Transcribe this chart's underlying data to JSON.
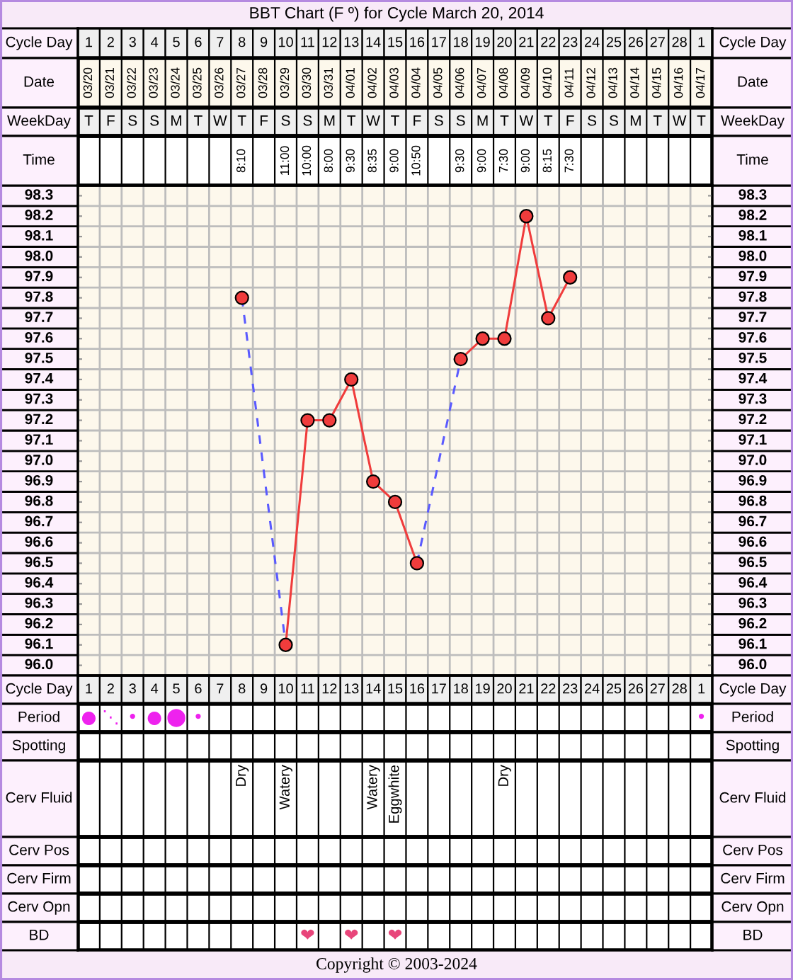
{
  "chart_data": [
    {
      "type": "heatmap",
      "title": "BBT Chart (F º) for Cycle March 20, 2014",
      "categories": [
        "1",
        "2",
        "3",
        "4",
        "5",
        "6",
        "7",
        "8",
        "9",
        "10",
        "11",
        "12",
        "13",
        "14",
        "15",
        "16",
        "17",
        "18",
        "19",
        "20",
        "21",
        "22",
        "23",
        "24",
        "25",
        "26",
        "27",
        "28",
        "1"
      ],
      "xlabel": "Cycle Day",
      "y_categories": [
        "Date",
        "WeekDay",
        "Time"
      ],
      "y2_categories": [
        "Date",
        "WeekDay",
        "Time"
      ],
      "cells": [
        [
          null,
          null,
          null,
          null,
          null,
          null,
          null,
          null,
          null,
          null,
          null,
          null,
          null,
          null,
          null,
          null,
          null,
          null,
          null,
          null,
          null,
          null,
          null,
          null,
          null,
          null,
          null,
          null,
          null
        ],
        [
          null,
          null,
          null,
          null,
          null,
          null,
          null,
          null,
          null,
          null,
          null,
          null,
          null,
          null,
          null,
          null,
          null,
          null,
          null,
          null,
          null,
          null,
          null,
          null,
          null,
          null,
          null,
          null,
          null
        ],
        [
          null,
          null,
          null,
          null,
          null,
          null,
          null,
          null,
          null,
          null,
          null,
          null,
          null,
          null,
          null,
          null,
          null,
          null,
          null,
          null,
          null,
          null,
          null,
          null,
          null,
          null,
          null,
          null,
          null
        ]
      ],
      "cell_labels": [
        [
          "03/20",
          "03/21",
          "03/22",
          "03/23",
          "03/24",
          "03/25",
          "03/26",
          "03/27",
          "03/28",
          "03/29",
          "03/30",
          "03/31",
          "04/01",
          "04/02",
          "04/03",
          "04/04",
          "04/05",
          "04/06",
          "04/07",
          "04/08",
          "04/09",
          "04/10",
          "04/11",
          "04/12",
          "04/13",
          "04/14",
          "04/15",
          "04/16",
          "04/17"
        ],
        [
          "T",
          "F",
          "S",
          "S",
          "M",
          "T",
          "W",
          "T",
          "F",
          "S",
          "S",
          "M",
          "T",
          "W",
          "T",
          "F",
          "S",
          "S",
          "M",
          "T",
          "W",
          "T",
          "F",
          "S",
          "S",
          "M",
          "T",
          "W",
          "T"
        ],
        [
          null,
          null,
          null,
          null,
          null,
          null,
          null,
          "8:10",
          null,
          "11:00",
          "10:00",
          "8:00",
          "9:30",
          "8:35",
          "9:00",
          "10:50",
          null,
          "9:30",
          "9:00",
          "7:30",
          "9:00",
          "8:15",
          "7:30",
          null,
          null,
          null,
          null,
          null,
          null
        ]
      ]
    },
    {
      "type": "line",
      "categories": [
        "1",
        "2",
        "3",
        "4",
        "5",
        "6",
        "7",
        "8",
        "9",
        "10",
        "11",
        "12",
        "13",
        "14",
        "15",
        "16",
        "17",
        "18",
        "19",
        "20",
        "21",
        "22",
        "23",
        "24",
        "25",
        "26",
        "27",
        "28",
        "1"
      ],
      "xlabel": "Cycle Day",
      "ylim": [
        95.95,
        98.35
      ],
      "yticks": [
        {
          "value": 96,
          "label": "96.0"
        },
        96.1,
        96.2,
        96.3,
        96.4,
        96.5,
        96.6,
        96.7,
        96.8,
        96.9,
        {
          "value": 97,
          "label": "97.0"
        },
        97.1,
        97.2,
        97.3,
        97.4,
        97.5,
        97.6,
        97.7,
        97.8,
        97.9,
        {
          "value": 98,
          "label": "98.0"
        },
        98.1,
        98.2,
        98.3
      ],
      "y2lim": [
        95.95,
        98.35
      ],
      "y2ticks": [
        {
          "value": 96,
          "label": "96.0"
        },
        96.1,
        96.2,
        96.3,
        96.4,
        96.5,
        96.6,
        96.7,
        96.8,
        96.9,
        {
          "value": 97,
          "label": "97.0"
        },
        97.1,
        97.2,
        97.3,
        97.4,
        97.5,
        97.6,
        97.7,
        97.8,
        97.9,
        {
          "value": 98,
          "label": "98.0"
        },
        98.1,
        98.2,
        98.3
      ],
      "grid": true,
      "marker": "circle",
      "series": [
        {
          "color": "#f03c3c",
          "values": [
            null,
            null,
            null,
            null,
            null,
            null,
            null,
            97.8,
            null,
            96.1,
            97.2,
            97.2,
            97.4,
            96.9,
            96.8,
            96.5,
            null,
            97.5,
            97.6,
            97.6,
            98.2,
            97.7,
            97.9,
            null,
            null,
            null,
            null,
            null,
            null
          ]
        },
        {
          "type": "line",
          "x": [
            "8",
            "10"
          ],
          "values": [
            97.8,
            96.1
          ],
          "color": "#5a5aff",
          "line_style": "dashed",
          "marker": "none"
        },
        {
          "type": "line",
          "x": [
            "16",
            "18"
          ],
          "values": [
            96.5,
            97.5
          ],
          "color": "#5a5aff",
          "line_style": "dashed",
          "marker": "none"
        }
      ]
    },
    {
      "type": "heatmap",
      "categories": [
        null,
        null,
        null,
        null,
        null,
        null,
        null,
        null,
        null,
        null,
        null,
        null,
        null,
        null,
        null,
        null,
        null,
        null,
        null,
        null,
        null,
        null,
        null,
        null,
        null,
        null,
        null,
        null,
        null
      ],
      "y_categories": [
        "Period",
        "Spotting",
        "Cerv Fluid",
        "Cerv Pos",
        "Cerv Firm",
        "Cerv Opn",
        "BD"
      ],
      "y2_categories": [
        "Period",
        "Spotting",
        "Cerv Fluid",
        "Cerv Pos",
        "Cerv Firm",
        "Cerv Opn",
        "BD"
      ],
      "cells": [
        [
          null,
          null,
          null,
          null,
          null,
          null,
          null,
          null,
          null,
          null,
          null,
          null,
          null,
          null,
          null,
          null,
          null,
          null,
          null,
          null,
          null,
          null,
          null,
          null,
          null,
          null,
          null,
          null,
          null
        ],
        [
          null,
          null,
          null,
          null,
          null,
          null,
          null,
          null,
          null,
          null,
          null,
          null,
          null,
          null,
          null,
          null,
          null,
          null,
          null,
          null,
          null,
          null,
          null,
          null,
          null,
          null,
          null,
          null,
          null
        ],
        [
          null,
          null,
          null,
          null,
          null,
          null,
          null,
          null,
          null,
          null,
          null,
          null,
          null,
          null,
          null,
          null,
          null,
          null,
          null,
          null,
          null,
          null,
          null,
          null,
          null,
          null,
          null,
          null,
          null
        ],
        [
          null,
          null,
          null,
          null,
          null,
          null,
          null,
          null,
          null,
          null,
          null,
          null,
          null,
          null,
          null,
          null,
          null,
          null,
          null,
          null,
          null,
          null,
          null,
          null,
          null,
          null,
          null,
          null,
          null
        ],
        [
          null,
          null,
          null,
          null,
          null,
          null,
          null,
          null,
          null,
          null,
          null,
          null,
          null,
          null,
          null,
          null,
          null,
          null,
          null,
          null,
          null,
          null,
          null,
          null,
          null,
          null,
          null,
          null,
          null
        ],
        [
          null,
          null,
          null,
          null,
          null,
          null,
          null,
          null,
          null,
          null,
          null,
          null,
          null,
          null,
          null,
          null,
          null,
          null,
          null,
          null,
          null,
          null,
          null,
          null,
          null,
          null,
          null,
          null,
          null
        ],
        [
          null,
          null,
          null,
          null,
          null,
          null,
          null,
          null,
          null,
          null,
          null,
          null,
          null,
          null,
          null,
          null,
          null,
          null,
          null,
          null,
          null,
          null,
          null,
          null,
          null,
          null,
          null,
          null,
          null
        ]
      ],
      "cell_labels": [
        [
          "●",
          "⋱",
          "•",
          "●",
          "⬤",
          "•",
          null,
          null,
          null,
          null,
          null,
          null,
          null,
          null,
          null,
          null,
          null,
          null,
          null,
          null,
          null,
          null,
          null,
          null,
          null,
          null,
          null,
          null,
          "•"
        ],
        [
          null,
          null,
          null,
          null,
          null,
          null,
          null,
          null,
          null,
          null,
          null,
          null,
          null,
          null,
          null,
          null,
          null,
          null,
          null,
          null,
          null,
          null,
          null,
          null,
          null,
          null,
          null,
          null,
          null
        ],
        [
          null,
          null,
          null,
          null,
          null,
          null,
          null,
          "Dry",
          null,
          "Watery",
          null,
          null,
          null,
          "Watery",
          "Eggwhite",
          null,
          null,
          null,
          null,
          "Dry",
          null,
          null,
          null,
          null,
          null,
          null,
          null,
          null,
          null
        ],
        [
          null,
          null,
          null,
          null,
          null,
          null,
          null,
          null,
          null,
          null,
          null,
          null,
          null,
          null,
          null,
          null,
          null,
          null,
          null,
          null,
          null,
          null,
          null,
          null,
          null,
          null,
          null,
          null,
          null
        ],
        [
          null,
          null,
          null,
          null,
          null,
          null,
          null,
          null,
          null,
          null,
          null,
          null,
          null,
          null,
          null,
          null,
          null,
          null,
          null,
          null,
          null,
          null,
          null,
          null,
          null,
          null,
          null,
          null,
          null
        ],
        [
          null,
          null,
          null,
          null,
          null,
          null,
          null,
          null,
          null,
          null,
          null,
          null,
          null,
          null,
          null,
          null,
          null,
          null,
          null,
          null,
          null,
          null,
          null,
          null,
          null,
          null,
          null,
          null,
          null
        ],
        [
          null,
          null,
          null,
          null,
          null,
          null,
          null,
          null,
          null,
          null,
          "❤",
          null,
          "❤",
          null,
          "❤",
          null,
          null,
          null,
          null,
          null,
          null,
          null,
          null,
          null,
          null,
          null,
          null,
          null,
          null
        ]
      ],
      "colors": [
        "#ee22ee",
        null,
        "#000000",
        null,
        null,
        null,
        "#e8457a"
      ],
      "annotations": [
        "Copyright © 2003-2024"
      ]
    }
  ]
}
